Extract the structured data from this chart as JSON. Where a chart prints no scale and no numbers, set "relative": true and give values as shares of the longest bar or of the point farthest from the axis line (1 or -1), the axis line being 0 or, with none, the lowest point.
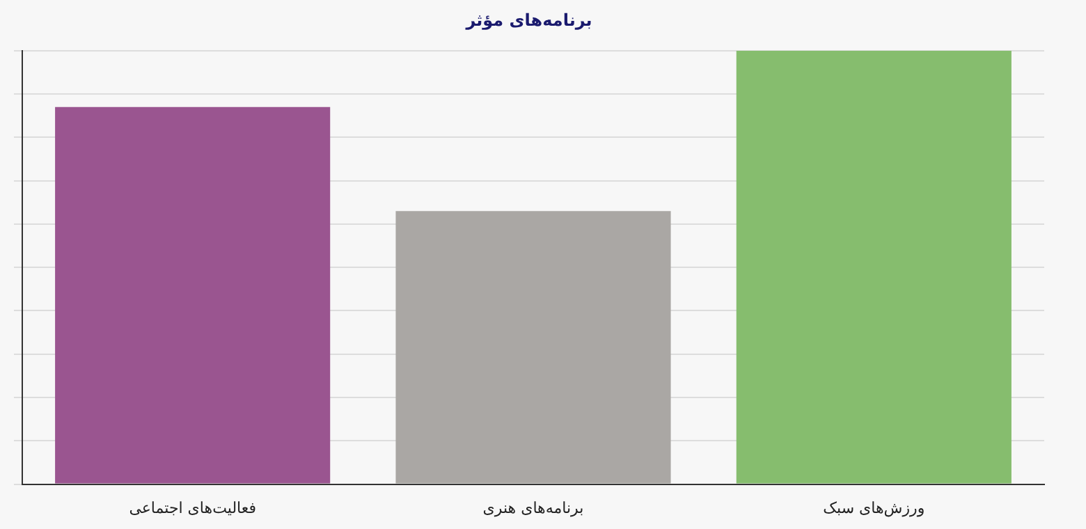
{
  "chart_data": {
    "type": "bar",
    "title": "برنامه‌های مؤثر",
    "categories": [
      "فعالیت‌های اجتماعی",
      "برنامه‌های هنری",
      "ورزش‌های سبک"
    ],
    "values": [
      0.87,
      0.63,
      1
    ],
    "colors": [
      "#9a5590",
      "#aaa7a4",
      "#86bd6e"
    ],
    "relative": true,
    "grid": true
  }
}
